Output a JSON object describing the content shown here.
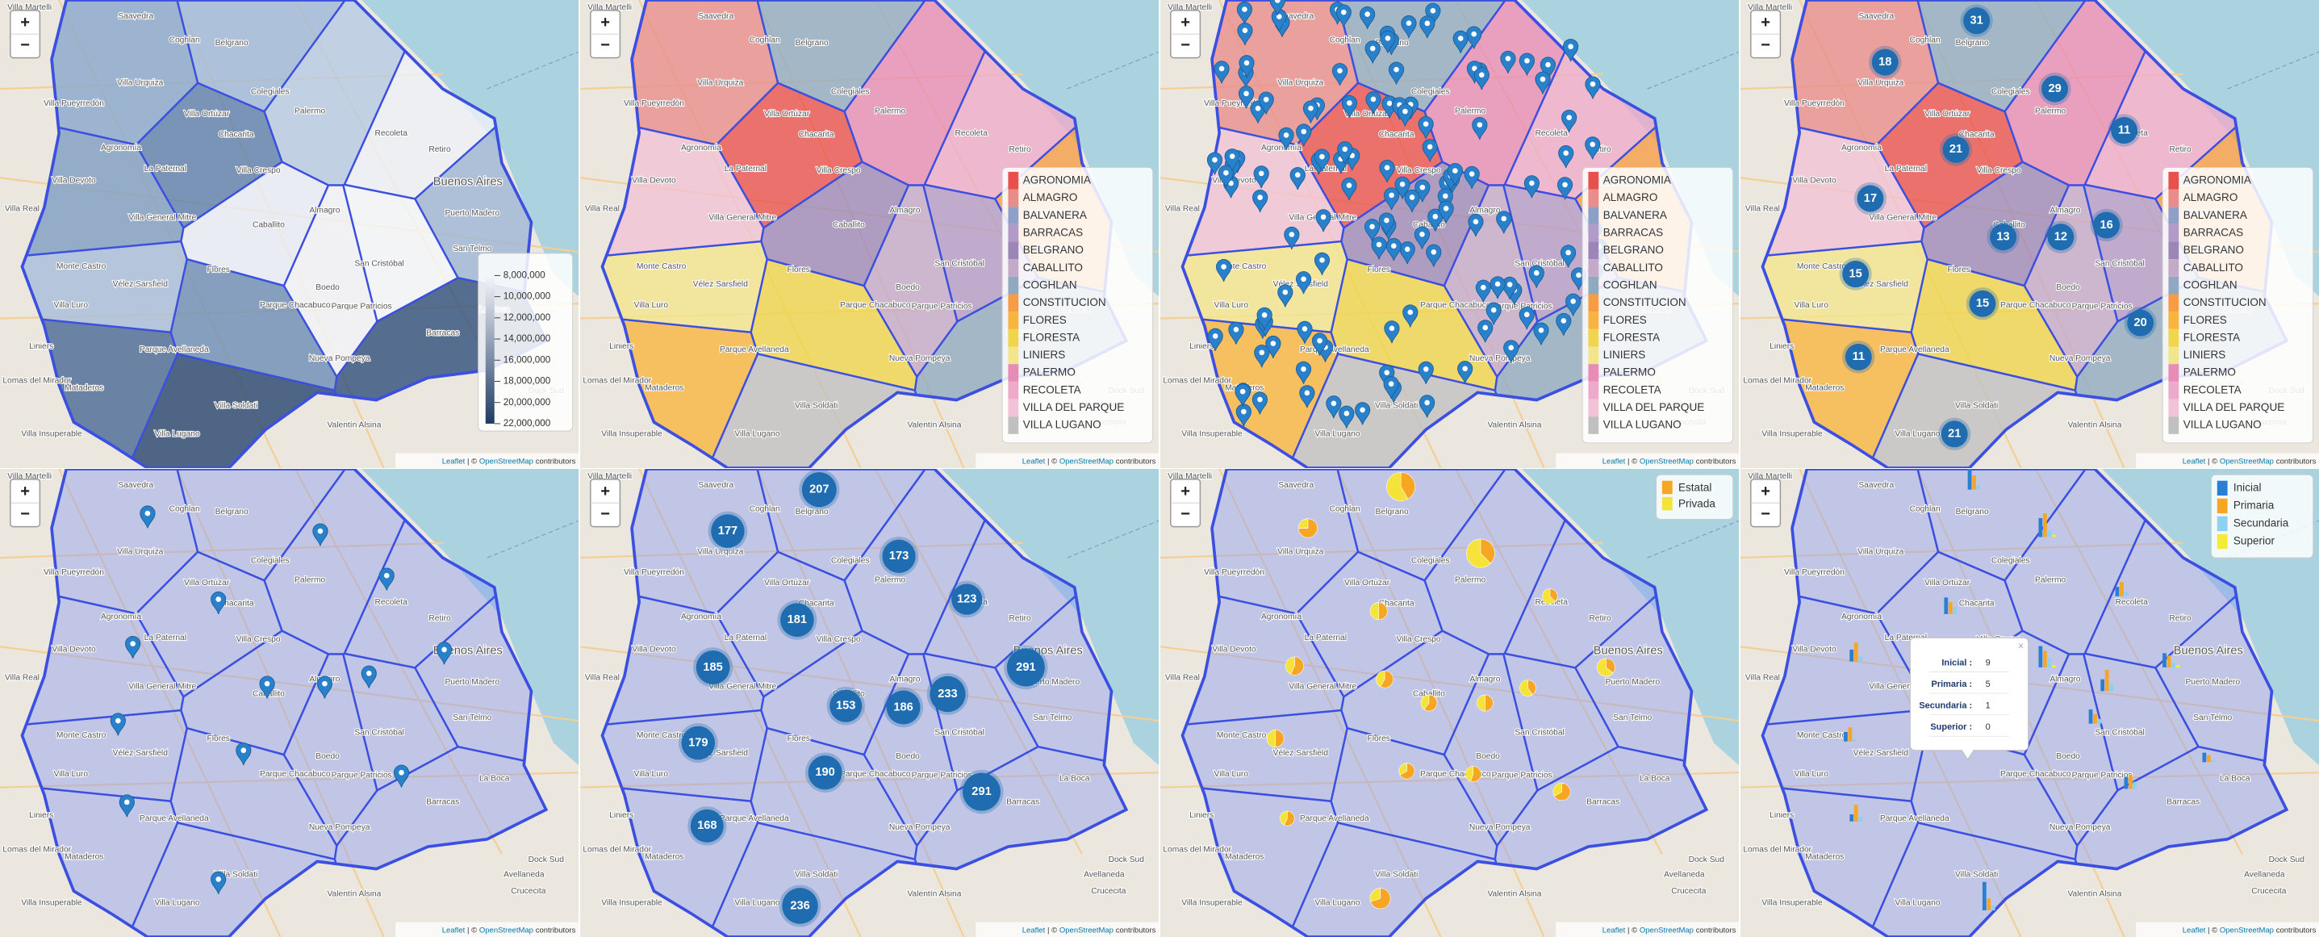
{
  "map": {
    "zoom_in": "+",
    "zoom_out": "−",
    "attribution_leaflet": "Leaflet",
    "attribution_sep": "| ©",
    "attribution_osm": "OpenStreetMap",
    "attribution_suffix": "contributors",
    "place_labels": [
      "Villa Martelli",
      "Saavedra",
      "Coghlan",
      "Belgrano",
      "Villa Urquiza",
      "Colegiales",
      "Villa Pueyrredón",
      "Palermo",
      "Villa Ortúzar",
      "Recoleta",
      "Chacarita",
      "Agronomía",
      "Retiro",
      "La Paternal",
      "Villa Crespo",
      "Villa Devoto",
      "Buenos Aires",
      "Villa Real",
      "Almagro",
      "Caballito",
      "Villa General Mitre",
      "Puerto Madero",
      "San Telmo",
      "San Cristóbal",
      "Monte Castro",
      "Flores",
      "Vélez Sarsfield",
      "Boedo",
      "Villa Luro",
      "Parque Chacabuco",
      "Parque Patricios",
      "La Boca",
      "Barracas",
      "Liniers",
      "Parque Avellaneda",
      "Nueva Pompeya",
      "Lomas del Mirador",
      "Mataderos",
      "Dock Sud",
      "Avellaneda",
      "Villa Soldati",
      "Crucecita",
      "Valentín Alsina",
      "Villa Lugano",
      "Villa Insuperable"
    ]
  },
  "choropleth_legend": {
    "labels": [
      "8,000,000",
      "10,000,000",
      "12,000,000",
      "14,000,000",
      "16,000,000",
      "18,000,000",
      "20,000,000",
      "22,000,000"
    ],
    "colors": [
      "#f4f6fb",
      "#1f3b63"
    ]
  },
  "barrio_legend": [
    {
      "name": "AGRONOMIA",
      "color": "#e9504c"
    },
    {
      "name": "ALMAGRO",
      "color": "#e98c8a"
    },
    {
      "name": "BALVANERA",
      "color": "#8e9fc8"
    },
    {
      "name": "BARRACAS",
      "color": "#b39ac8"
    },
    {
      "name": "BELGRANO",
      "color": "#9c86b8"
    },
    {
      "name": "CABALLITO",
      "color": "#c4a9c9"
    },
    {
      "name": "COGHLAN",
      "color": "#90a9c0"
    },
    {
      "name": "CONSTITUCION",
      "color": "#f59c45"
    },
    {
      "name": "FLORES",
      "color": "#f8b43c"
    },
    {
      "name": "FLORESTA",
      "color": "#f1d54a"
    },
    {
      "name": "LINIERS",
      "color": "#f3e58c"
    },
    {
      "name": "PALERMO",
      "color": "#e88bb5"
    },
    {
      "name": "RECOLETA",
      "color": "#eeaacb"
    },
    {
      "name": "VILLA DEL PARQUE",
      "color": "#f2c2d6"
    },
    {
      "name": "VILLA LUGANO",
      "color": "#c0c0c0"
    }
  ],
  "comuna_clusters": [
    31,
    18,
    29,
    11,
    21,
    17,
    13,
    12,
    16,
    15,
    15,
    20,
    11,
    21
  ],
  "school_clusters": [
    207,
    177,
    173,
    181,
    123,
    185,
    291,
    153,
    186,
    233,
    179,
    190,
    291,
    168,
    236
  ],
  "sector_legend": [
    {
      "name": "Estatal",
      "color": "#f6a623"
    },
    {
      "name": "Privada",
      "color": "#f5e33a"
    }
  ],
  "sector_pies": [
    [
      12,
      4
    ],
    [
      20,
      28
    ],
    [
      18,
      30
    ],
    [
      6,
      6
    ],
    [
      3,
      5
    ],
    [
      8,
      6
    ],
    [
      5,
      9
    ],
    [
      6,
      4
    ],
    [
      5,
      5
    ],
    [
      4,
      6
    ],
    [
      7,
      5
    ],
    [
      6,
      6
    ],
    [
      6,
      3
    ],
    [
      5,
      4
    ],
    [
      8,
      4
    ],
    [
      4,
      3
    ],
    [
      14,
      6
    ]
  ],
  "level_legend": [
    {
      "name": "Inicial",
      "color": "#2a7fd4"
    },
    {
      "name": "Primaria",
      "color": "#f5a623"
    },
    {
      "name": "Secundaria",
      "color": "#8fd0ee"
    },
    {
      "name": "Superior",
      "color": "#f4ea3a"
    }
  ],
  "level_bars": [
    [
      9,
      6,
      2,
      0
    ],
    [
      8,
      10,
      3,
      1
    ],
    [
      4,
      6,
      2,
      0
    ],
    [
      7,
      5,
      3,
      0
    ],
    [
      5,
      8,
      2,
      0
    ],
    [
      9,
      7,
      4,
      1
    ],
    [
      6,
      5,
      2,
      1
    ],
    [
      5,
      9,
      3,
      0
    ],
    [
      4,
      6,
      1,
      0
    ],
    [
      6,
      4,
      2,
      0
    ],
    [
      3,
      7,
      2,
      0
    ],
    [
      5,
      6,
      3,
      0
    ],
    [
      12,
      5,
      2,
      0
    ],
    [
      4,
      3,
      1,
      0
    ]
  ],
  "popup": {
    "close": "×",
    "rows": [
      {
        "label": "Inicial :",
        "value": 9
      },
      {
        "label": "Primaria :",
        "value": 5
      },
      {
        "label": "Secundaria :",
        "value": 1
      },
      {
        "label": "Superior :",
        "value": 0
      }
    ]
  }
}
